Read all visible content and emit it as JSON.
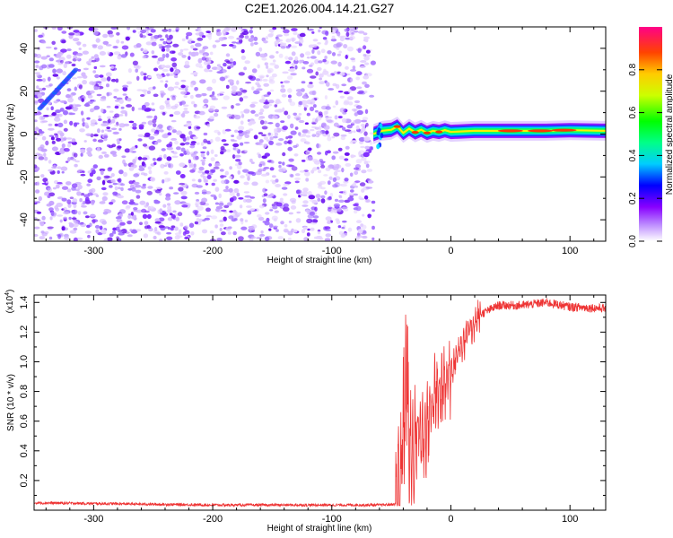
{
  "title": "C2E1.2026.004.14.21.G27",
  "chart_data": [
    {
      "type": "heatmap",
      "xlabel": "Height of straight line (km)",
      "ylabel": "Frequency (Hz)",
      "xlim": [
        -350,
        130
      ],
      "ylim": [
        -50,
        50
      ],
      "x_ticks": [
        -300,
        -200,
        -100,
        0,
        100
      ],
      "y_ticks": [
        -40,
        -20,
        0,
        20,
        40
      ],
      "noise_region_x": [
        -350,
        -65
      ],
      "signal_trace": [
        {
          "x": -65,
          "y": 0.0
        },
        {
          "x": -58,
          "y": 1.5
        },
        {
          "x": -50,
          "y": 2.0
        },
        {
          "x": -45,
          "y": 3.5
        },
        {
          "x": -40,
          "y": 0.5
        },
        {
          "x": -35,
          "y": 2.5
        },
        {
          "x": -30,
          "y": 0.8
        },
        {
          "x": -25,
          "y": 2.0
        },
        {
          "x": -20,
          "y": 0.5
        },
        {
          "x": -15,
          "y": 1.5
        },
        {
          "x": -10,
          "y": 1.0
        },
        {
          "x": -5,
          "y": 1.8
        },
        {
          "x": 0,
          "y": 1.0
        },
        {
          "x": 20,
          "y": 1.5
        },
        {
          "x": 40,
          "y": 1.5
        },
        {
          "x": 60,
          "y": 1.5
        },
        {
          "x": 80,
          "y": 1.5
        },
        {
          "x": 100,
          "y": 1.8
        },
        {
          "x": 130,
          "y": 1.5
        }
      ]
    },
    {
      "type": "line",
      "xlabel": "Height of straight line (km)",
      "ylabel": "SNR (10 * v/v)",
      "y_multiplier": "(x10",
      "y_multiplier_exp": "4",
      "y_multiplier_close": ")",
      "xlim": [
        -350,
        130
      ],
      "ylim": [
        0,
        1.45
      ],
      "x_ticks": [
        -300,
        -200,
        -100,
        0,
        100
      ],
      "y_ticks": [
        0.2,
        0.4,
        0.6,
        0.8,
        1.0,
        1.2,
        1.4
      ],
      "color": "#ee3333",
      "envelope": [
        {
          "x": -350,
          "y": 0.05
        },
        {
          "x": -300,
          "y": 0.045
        },
        {
          "x": -200,
          "y": 0.035
        },
        {
          "x": -100,
          "y": 0.035
        },
        {
          "x": -60,
          "y": 0.035
        },
        {
          "x": -47,
          "y": 0.04
        },
        {
          "x": -42,
          "y": 0.25
        },
        {
          "x": -38,
          "y": 0.75
        },
        {
          "x": -34,
          "y": 0.35
        },
        {
          "x": -28,
          "y": 0.55
        },
        {
          "x": -22,
          "y": 0.5
        },
        {
          "x": -15,
          "y": 0.75
        },
        {
          "x": -8,
          "y": 0.8
        },
        {
          "x": 0,
          "y": 0.95
        },
        {
          "x": 8,
          "y": 1.1
        },
        {
          "x": 15,
          "y": 1.2
        },
        {
          "x": 25,
          "y": 1.32
        },
        {
          "x": 40,
          "y": 1.38
        },
        {
          "x": 60,
          "y": 1.38
        },
        {
          "x": 80,
          "y": 1.4
        },
        {
          "x": 100,
          "y": 1.37
        },
        {
          "x": 130,
          "y": 1.36
        }
      ]
    }
  ],
  "colorbar": {
    "label": "Normalized spectral amplitude",
    "range": [
      0,
      1
    ],
    "ticks": [
      0.0,
      0.2,
      0.4,
      0.6,
      0.8
    ],
    "tick_labels": [
      "0.0",
      "0.2",
      "0.4",
      "0.6",
      "0.8"
    ],
    "colors": [
      "#ffffff",
      "#8800ff",
      "#0000ff",
      "#00ffff",
      "#00ff00",
      "#ffff00",
      "#ff8800",
      "#ff0000",
      "#ff00aa"
    ]
  }
}
